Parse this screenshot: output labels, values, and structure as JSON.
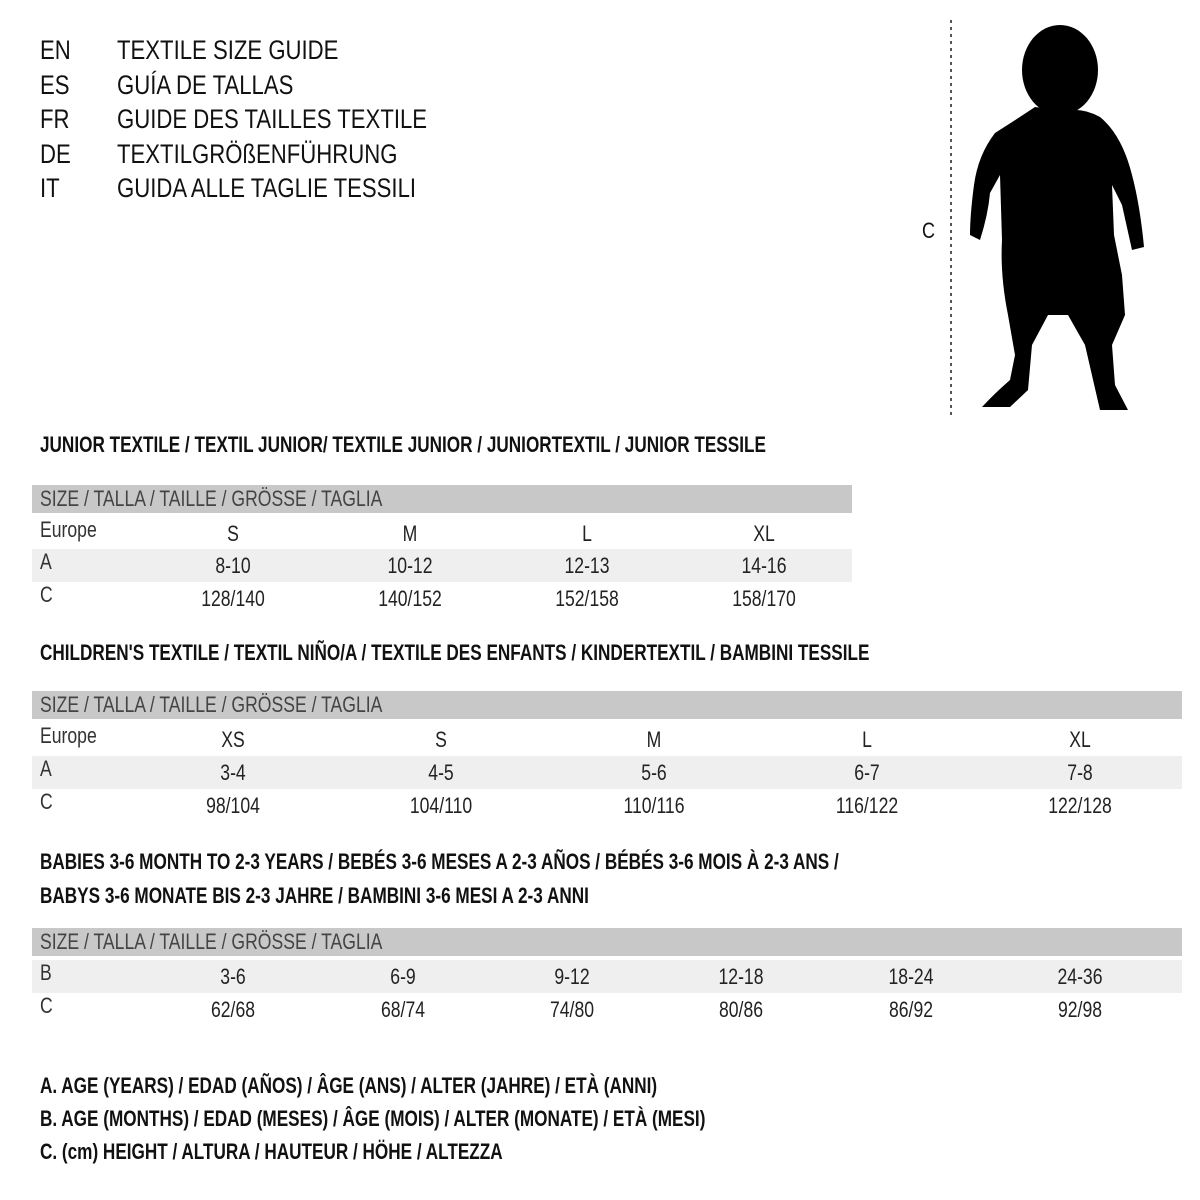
{
  "languages": [
    {
      "code": "EN",
      "title": "TEXTILE SIZE GUIDE"
    },
    {
      "code": "ES",
      "title": "GUÍA DE TALLAS"
    },
    {
      "code": "FR",
      "title": "GUIDE DES TAILLES TEXTILE"
    },
    {
      "code": "DE",
      "title": "TEXTILGRÖßENFÜHRUNG"
    },
    {
      "code": "IT",
      "title": "GUIDA ALLE TAGLIE TESSILI"
    }
  ],
  "figure": {
    "measure_label": "C",
    "icon": "child-silhouette-icon"
  },
  "colors": {
    "header_bg": "#c8c8c8",
    "row_shade": "#efefef"
  },
  "tables": [
    {
      "heading": [
        "JUNIOR TEXTILE / TEXTIL JUNIOR/ TEXTILE JUNIOR / JUNIORTEXTIL / JUNIOR TESSILE"
      ],
      "header": "SIZE / TALLA / TAILLE / GRÖSSE / TAGLIA",
      "rows": [
        {
          "label": "Europe",
          "values": [
            "S",
            "M",
            "L",
            "XL"
          ]
        },
        {
          "label": "A",
          "values": [
            "8-10",
            "10-12",
            "12-13",
            "14-16"
          ]
        },
        {
          "label": "C",
          "values": [
            "128/140",
            "140/152",
            "152/158",
            "158/170"
          ]
        }
      ]
    },
    {
      "heading": [
        "CHILDREN'S TEXTILE / TEXTIL NIÑO/A / TEXTILE DES ENFANTS / KINDERTEXTIL / BAMBINI TESSILE"
      ],
      "header": "SIZE / TALLA / TAILLE / GRÖSSE / TAGLIA",
      "rows": [
        {
          "label": "Europe",
          "values": [
            "XS",
            "S",
            "M",
            "L",
            "XL"
          ]
        },
        {
          "label": "A",
          "values": [
            "3-4",
            "4-5",
            "5-6",
            "6-7",
            "7-8"
          ]
        },
        {
          "label": "C",
          "values": [
            "98/104",
            "104/110",
            "110/116",
            "116/122",
            "122/128"
          ]
        }
      ]
    },
    {
      "heading": [
        "BABIES 3-6 MONTH TO 2-3 YEARS / BEBÉS 3-6 MESES A 2-3 AÑOS / BÉBÉS 3-6 MOIS À 2-3 ANS /",
        "BABYS 3-6 MONATE BIS 2-3 JAHRE / BAMBINI 3-6 MESI A 2-3 ANNI"
      ],
      "header": "SIZE / TALLA / TAILLE / GRÖSSE / TAGLIA",
      "rows": [
        {
          "label": "B",
          "values": [
            "3-6",
            "6-9",
            "9-12",
            "12-18",
            "18-24",
            "24-36"
          ]
        },
        {
          "label": "C",
          "values": [
            "62/68",
            "68/74",
            "74/80",
            "80/86",
            "86/92",
            "92/98"
          ]
        }
      ]
    }
  ],
  "legend": [
    "A. AGE (YEARS) / EDAD (AÑOS) / ÂGE (ANS) / ALTER (JAHRE) / ETÀ (ANNI)",
    "B. AGE (MONTHS) / EDAD (MESES) / ÂGE (MOIS) / ALTER (MONATE) / ETÀ (MESI)",
    "C. (cm) HEIGHT / ALTURA / HAUTEUR / HÖHE / ALTEZZA"
  ]
}
